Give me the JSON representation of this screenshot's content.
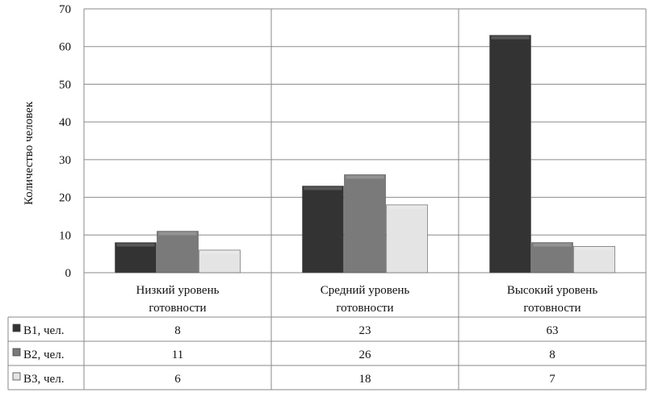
{
  "chart_data": {
    "type": "bar",
    "title": "",
    "xlabel": "",
    "ylabel": "Количество человек",
    "ylim": [
      0,
      70
    ],
    "yticks": [
      0,
      10,
      20,
      30,
      40,
      50,
      60,
      70
    ],
    "grid": true,
    "legend": "data-table-below",
    "categories": [
      [
        "Низкий уровень",
        "готовности"
      ],
      [
        "Средний уровень",
        "готовности"
      ],
      [
        "Высокий уровень",
        "готовности"
      ]
    ],
    "series": [
      {
        "name": "B1, чел.",
        "values": [
          8,
          23,
          63
        ],
        "color": "#333333"
      },
      {
        "name": "B2, чел.",
        "values": [
          11,
          26,
          8
        ],
        "color": "#7a7a7a"
      },
      {
        "name": "B3, чел.",
        "values": [
          6,
          18,
          7
        ],
        "color": "#e4e4e4"
      }
    ]
  }
}
